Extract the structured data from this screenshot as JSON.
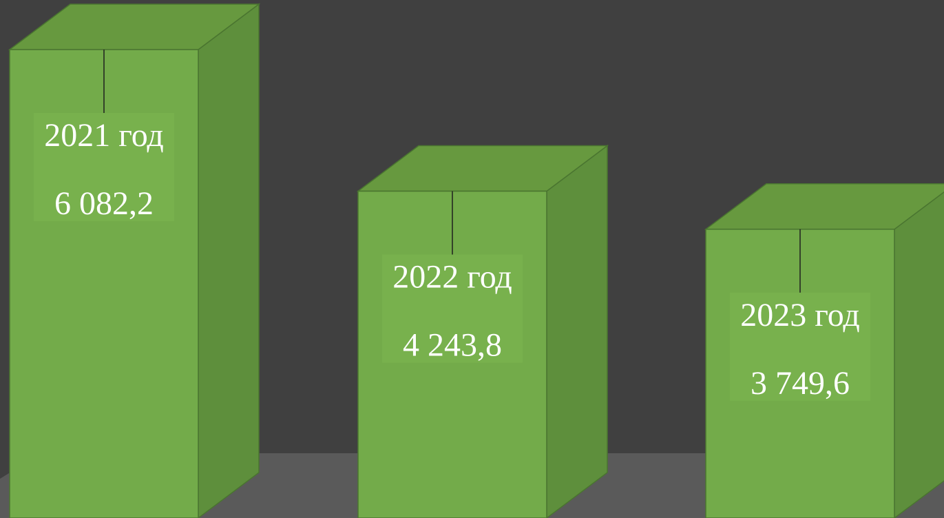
{
  "chart_data": {
    "type": "bar",
    "style": "3d-columns",
    "categories": [
      "2021 год",
      "2022 год",
      "2023 год"
    ],
    "values": [
      6082.2,
      4243.8,
      3749.6
    ],
    "value_labels": [
      "6 082,2",
      "4 243,8",
      "3 749,6"
    ],
    "title": "",
    "xlabel": "",
    "ylabel": "",
    "grid": false,
    "legend": "none"
  },
  "colors": {
    "background": "#404040",
    "floor": "#5a5a5a",
    "bar_front": "#73ab4a",
    "bar_side": "#5e8f3c",
    "bar_top": "#67993f",
    "label_box": "#78b14d",
    "text": "#ffffff"
  }
}
